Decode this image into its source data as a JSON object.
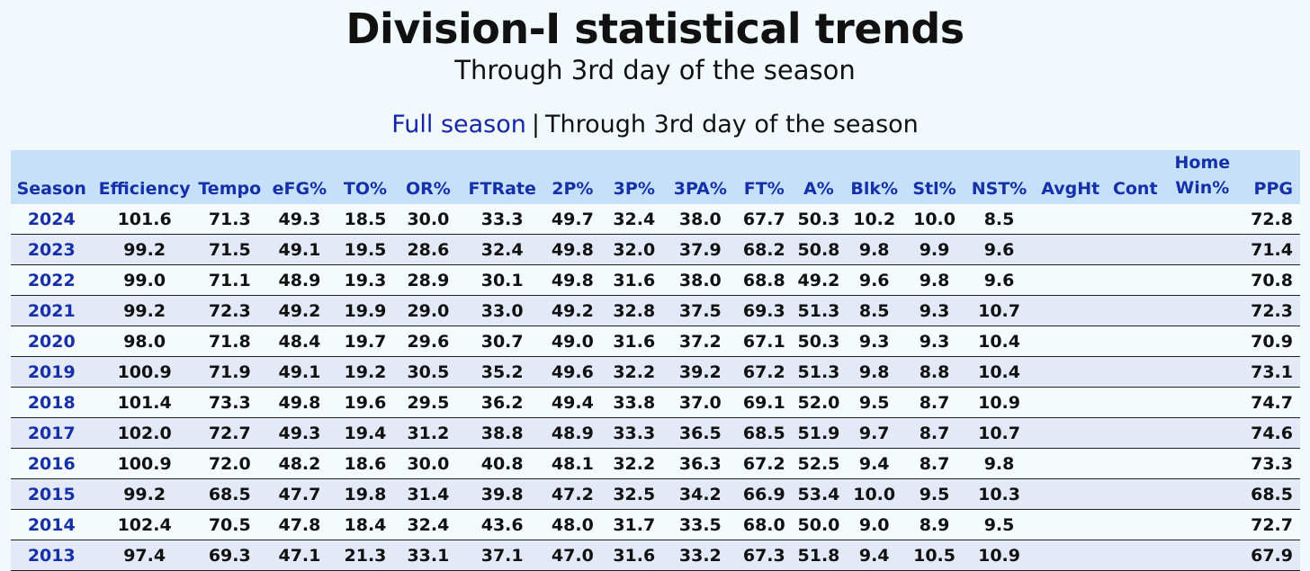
{
  "header": {
    "title": "Division-I statistical trends",
    "subtitle": "Through 3rd day of the season"
  },
  "view_switch": {
    "full_season_label": "Full season",
    "separator": "|",
    "current_label": "Through 3rd day of the season"
  },
  "table": {
    "columns": [
      "Season",
      "Efficiency",
      "Tempo",
      "eFG%",
      "TO%",
      "OR%",
      "FTRate",
      "2P%",
      "3P%",
      "3PA%",
      "FT%",
      "A%",
      "Blk%",
      "Stl%",
      "NST%",
      "AvgHt",
      "Cont",
      "Home Win%",
      "PPG"
    ],
    "header_home_line1": "Home",
    "header_home_line2": "Win%",
    "rows": [
      {
        "season": "2024",
        "values": [
          "101.6",
          "71.3",
          "49.3",
          "18.5",
          "30.0",
          "33.3",
          "49.7",
          "32.4",
          "38.0",
          "67.7",
          "50.3",
          "10.2",
          "10.0",
          "8.5",
          "",
          "",
          "",
          "72.8"
        ]
      },
      {
        "season": "2023",
        "values": [
          "99.2",
          "71.5",
          "49.1",
          "19.5",
          "28.6",
          "32.4",
          "49.8",
          "32.0",
          "37.9",
          "68.2",
          "50.8",
          "9.8",
          "9.9",
          "9.6",
          "",
          "",
          "",
          "71.4"
        ]
      },
      {
        "season": "2022",
        "values": [
          "99.0",
          "71.1",
          "48.9",
          "19.3",
          "28.9",
          "30.1",
          "49.8",
          "31.6",
          "38.0",
          "68.8",
          "49.2",
          "9.6",
          "9.8",
          "9.6",
          "",
          "",
          "",
          "70.8"
        ]
      },
      {
        "season": "2021",
        "values": [
          "99.2",
          "72.3",
          "49.2",
          "19.9",
          "29.0",
          "33.0",
          "49.2",
          "32.8",
          "37.5",
          "69.3",
          "51.3",
          "8.5",
          "9.3",
          "10.7",
          "",
          "",
          "",
          "72.3"
        ]
      },
      {
        "season": "2020",
        "values": [
          "98.0",
          "71.8",
          "48.4",
          "19.7",
          "29.6",
          "30.7",
          "49.0",
          "31.6",
          "37.2",
          "67.1",
          "50.3",
          "9.3",
          "9.3",
          "10.4",
          "",
          "",
          "",
          "70.9"
        ]
      },
      {
        "season": "2019",
        "values": [
          "100.9",
          "71.9",
          "49.1",
          "19.2",
          "30.5",
          "35.2",
          "49.6",
          "32.2",
          "39.2",
          "67.2",
          "51.3",
          "9.8",
          "8.8",
          "10.4",
          "",
          "",
          "",
          "73.1"
        ]
      },
      {
        "season": "2018",
        "values": [
          "101.4",
          "73.3",
          "49.8",
          "19.6",
          "29.5",
          "36.2",
          "49.4",
          "33.8",
          "37.0",
          "69.1",
          "52.0",
          "9.5",
          "8.7",
          "10.9",
          "",
          "",
          "",
          "74.7"
        ]
      },
      {
        "season": "2017",
        "values": [
          "102.0",
          "72.7",
          "49.3",
          "19.4",
          "31.2",
          "38.8",
          "48.9",
          "33.3",
          "36.5",
          "68.5",
          "51.9",
          "9.7",
          "8.7",
          "10.7",
          "",
          "",
          "",
          "74.6"
        ]
      },
      {
        "season": "2016",
        "values": [
          "100.9",
          "72.0",
          "48.2",
          "18.6",
          "30.0",
          "40.8",
          "48.1",
          "32.2",
          "36.3",
          "67.2",
          "52.5",
          "9.4",
          "8.7",
          "9.8",
          "",
          "",
          "",
          "73.3"
        ]
      },
      {
        "season": "2015",
        "values": [
          "99.2",
          "68.5",
          "47.7",
          "19.8",
          "31.4",
          "39.8",
          "47.2",
          "32.5",
          "34.2",
          "66.9",
          "53.4",
          "10.0",
          "9.5",
          "10.3",
          "",
          "",
          "",
          "68.5"
        ]
      },
      {
        "season": "2014",
        "values": [
          "102.4",
          "70.5",
          "47.8",
          "18.4",
          "32.4",
          "43.6",
          "48.0",
          "31.7",
          "33.5",
          "68.0",
          "50.0",
          "9.0",
          "8.9",
          "9.5",
          "",
          "",
          "",
          "72.7"
        ]
      },
      {
        "season": "2013",
        "values": [
          "97.4",
          "69.3",
          "47.1",
          "21.3",
          "33.1",
          "37.1",
          "47.0",
          "31.6",
          "33.2",
          "67.3",
          "51.8",
          "9.4",
          "10.5",
          "10.9",
          "",
          "",
          "",
          "67.9"
        ]
      }
    ]
  },
  "colors": {
    "link": "#1530a8",
    "header_bg": "#c6e0fa",
    "row_alt_bg": "#e4e9f7",
    "page_bg": "#f2f9fc"
  }
}
